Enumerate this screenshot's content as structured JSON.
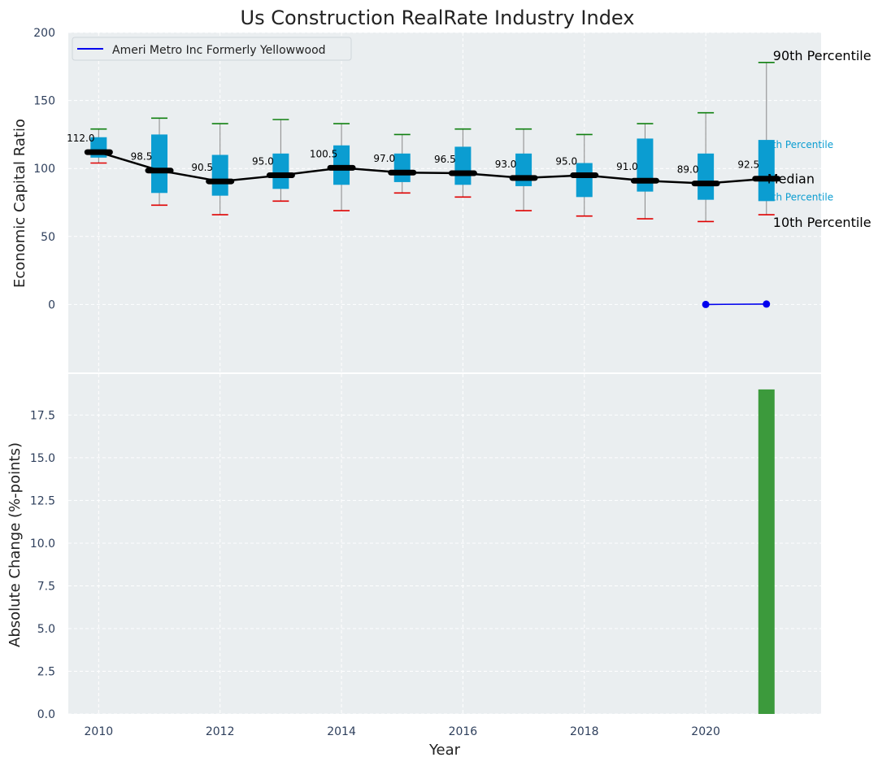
{
  "title": "Us Construction RealRate Industry Index",
  "chart_data": [
    {
      "type": "box",
      "ylabel": "Economic Capital Ratio",
      "ylim": [
        -50,
        200
      ],
      "yticks": [
        0,
        50,
        100,
        150,
        200
      ],
      "xlim": [
        2009.5,
        2021.9
      ],
      "grid": true,
      "years": [
        2010,
        2011,
        2012,
        2013,
        2014,
        2015,
        2016,
        2017,
        2018,
        2019,
        2020,
        2021
      ],
      "p90": [
        129,
        137,
        133,
        136,
        133,
        125,
        129,
        129,
        125,
        133,
        141,
        178
      ],
      "q3": [
        123,
        125,
        110,
        111,
        117,
        111,
        116,
        111,
        104,
        122,
        111,
        121
      ],
      "median": [
        112.0,
        98.5,
        90.5,
        95.0,
        100.5,
        97.0,
        96.5,
        93.0,
        95.0,
        91.0,
        89.0,
        92.5
      ],
      "median_labels": [
        "112.0",
        "98.5",
        "90.5",
        "95.0",
        "100.5",
        "97.0",
        "96.5",
        "93.0",
        "95.0",
        "91.0",
        "89.0",
        "92.5"
      ],
      "q1": [
        108,
        82,
        80,
        85,
        88,
        90,
        88,
        87,
        79,
        83,
        77,
        76
      ],
      "p10": [
        104,
        73,
        66,
        76,
        69,
        82,
        79,
        69,
        65,
        63,
        61,
        66
      ],
      "company_series": {
        "name": "Ameri Metro Inc Formerly Yellowwood",
        "x": [
          2020,
          2021
        ],
        "y": [
          0.0,
          0.3
        ]
      },
      "legend": {
        "position": "top-left",
        "label": "Ameri Metro Inc Formerly Yellowwood"
      },
      "annotations": {
        "p90": "90th Percentile",
        "q3": "th Percentile",
        "median": "Median",
        "q1": "th Percentile",
        "p10": "10th Percentile"
      },
      "colors": {
        "box": "#0b9dd1",
        "median_line": "#000000",
        "p90_cap": "#108010",
        "p10_cap": "#e00000",
        "whisker": "#888888",
        "company": "#0000ee",
        "background": "#eaeef0"
      }
    },
    {
      "type": "bar",
      "xlabel": "Year",
      "ylabel": "Absolute Change (%-points)",
      "ylim": [
        0,
        19.9
      ],
      "yticks": [
        "0.0",
        "2.5",
        "5.0",
        "7.5",
        "10.0",
        "12.5",
        "15.0",
        "17.5"
      ],
      "xticks": [
        "2010",
        "2012",
        "2014",
        "2016",
        "2018",
        "2020"
      ],
      "x": [
        2021
      ],
      "values": [
        19.0
      ],
      "color": "#3c9a3c"
    }
  ]
}
